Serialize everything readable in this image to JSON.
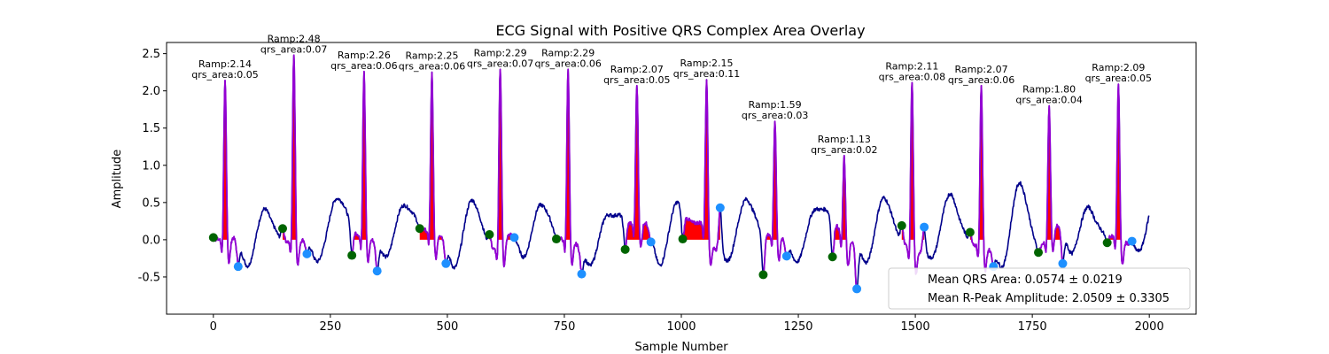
{
  "chart_data": {
    "type": "line",
    "title": "ECG Signal with Positive QRS Complex Area Overlay",
    "xlabel": "Sample Number",
    "ylabel": "Amplitude",
    "xlim": [
      -100,
      2100
    ],
    "ylim": [
      -1.0,
      2.65
    ],
    "xticks": [
      0,
      250,
      500,
      750,
      1000,
      1250,
      1500,
      1750,
      2000
    ],
    "yticks": [
      -0.5,
      0.0,
      0.5,
      1.0,
      1.5,
      2.0,
      2.5
    ],
    "grid": false,
    "colors": {
      "signal": "#00008b",
      "qrs_segment": "#9400d3",
      "qrs_area": "#ff0000",
      "onset_marker": "#006400",
      "offset_marker": "#1e90ff"
    },
    "beats": [
      {
        "r_x": 25,
        "r_amp": 2.14,
        "qrs_area": 0.05,
        "onset": [
          0,
          0.03
        ],
        "offset": [
          53,
          -0.36
        ],
        "ramp_label": "Ramp:2.14",
        "area_label": "qrs_area:0.05"
      },
      {
        "r_x": 172,
        "r_amp": 2.48,
        "qrs_area": 0.07,
        "onset": [
          148,
          0.15
        ],
        "offset": [
          200,
          -0.19
        ],
        "ramp_label": "Ramp:2.48",
        "area_label": "qrs_area:0.07"
      },
      {
        "r_x": 322,
        "r_amp": 2.26,
        "qrs_area": 0.06,
        "onset": [
          296,
          -0.21
        ],
        "offset": [
          350,
          -0.42
        ],
        "ramp_label": "Ramp:2.26",
        "area_label": "qrs_area:0.06"
      },
      {
        "r_x": 467,
        "r_amp": 2.25,
        "qrs_area": 0.06,
        "onset": [
          441,
          0.15
        ],
        "offset": [
          497,
          -0.32
        ],
        "ramp_label": "Ramp:2.25",
        "area_label": "qrs_area:0.06"
      },
      {
        "r_x": 613,
        "r_amp": 2.29,
        "qrs_area": 0.07,
        "onset": [
          590,
          0.07
        ],
        "offset": [
          643,
          0.03
        ],
        "ramp_label": "Ramp:2.29",
        "area_label": "qrs_area:0.07"
      },
      {
        "r_x": 758,
        "r_amp": 2.29,
        "qrs_area": 0.06,
        "onset": [
          733,
          0.01
        ],
        "offset": [
          787,
          -0.46
        ],
        "ramp_label": "Ramp:2.29",
        "area_label": "qrs_area:0.06"
      },
      {
        "r_x": 905,
        "r_amp": 2.07,
        "qrs_area": 0.05,
        "onset": [
          880,
          -0.13
        ],
        "offset": [
          935,
          -0.03
        ],
        "ramp_label": "Ramp:2.07",
        "area_label": "qrs_area:0.05"
      },
      {
        "r_x": 1054,
        "r_amp": 2.15,
        "qrs_area": 0.11,
        "onset": [
          1003,
          0.01
        ],
        "offset": [
          1083,
          0.43
        ],
        "ramp_label": "Ramp:2.15",
        "area_label": "qrs_area:0.11"
      },
      {
        "r_x": 1200,
        "r_amp": 1.59,
        "qrs_area": 0.03,
        "onset": [
          1175,
          -0.47
        ],
        "offset": [
          1225,
          -0.22
        ],
        "ramp_label": "Ramp:1.59",
        "area_label": "qrs_area:0.03"
      },
      {
        "r_x": 1348,
        "r_amp": 1.13,
        "qrs_area": 0.02,
        "onset": [
          1323,
          -0.23
        ],
        "offset": [
          1375,
          -0.66
        ],
        "ramp_label": "Ramp:1.13",
        "area_label": "qrs_area:0.02"
      },
      {
        "r_x": 1493,
        "r_amp": 2.11,
        "qrs_area": 0.08,
        "onset": [
          1471,
          0.19
        ],
        "offset": [
          1519,
          0.17
        ],
        "ramp_label": "Ramp:2.11",
        "area_label": "qrs_area:0.08"
      },
      {
        "r_x": 1641,
        "r_amp": 2.07,
        "qrs_area": 0.06,
        "onset": [
          1617,
          0.1
        ],
        "offset": [
          1667,
          -0.36
        ],
        "ramp_label": "Ramp:2.07",
        "area_label": "qrs_area:0.06"
      },
      {
        "r_x": 1786,
        "r_amp": 1.8,
        "qrs_area": 0.04,
        "onset": [
          1763,
          -0.17
        ],
        "offset": [
          1815,
          -0.32
        ],
        "ramp_label": "Ramp:1.80",
        "area_label": "qrs_area:0.04"
      },
      {
        "r_x": 1934,
        "r_amp": 2.09,
        "qrs_area": 0.05,
        "onset": [
          1910,
          -0.04
        ],
        "offset": [
          1963,
          -0.02
        ],
        "ramp_label": "Ramp:2.09",
        "area_label": "qrs_area:0.05"
      }
    ],
    "legend": {
      "placement": "lower-right",
      "entries": [
        "Mean QRS Area: 0.0574 ± 0.0219",
        "Mean R-Peak Amplitude: 2.0509 ± 0.3305"
      ]
    }
  }
}
